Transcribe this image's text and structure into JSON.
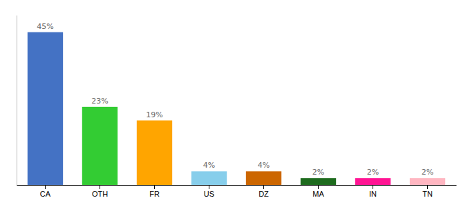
{
  "chart_data": {
    "type": "bar",
    "categories": [
      "CA",
      "OTH",
      "FR",
      "US",
      "DZ",
      "MA",
      "IN",
      "TN"
    ],
    "values": [
      45,
      23,
      19,
      4,
      4,
      2,
      2,
      2
    ],
    "value_labels": [
      "45%",
      "23%",
      "19%",
      "4%",
      "4%",
      "2%",
      "2%",
      "2%"
    ],
    "colors": [
      "#4472C4",
      "#33CC33",
      "#FFA500",
      "#87CEEB",
      "#CC6600",
      "#1E6B1E",
      "#FF1493",
      "#FFB6C1"
    ],
    "ylim": [
      0,
      50
    ],
    "data_labels": true,
    "grid": false,
    "tick_labels": "x"
  }
}
